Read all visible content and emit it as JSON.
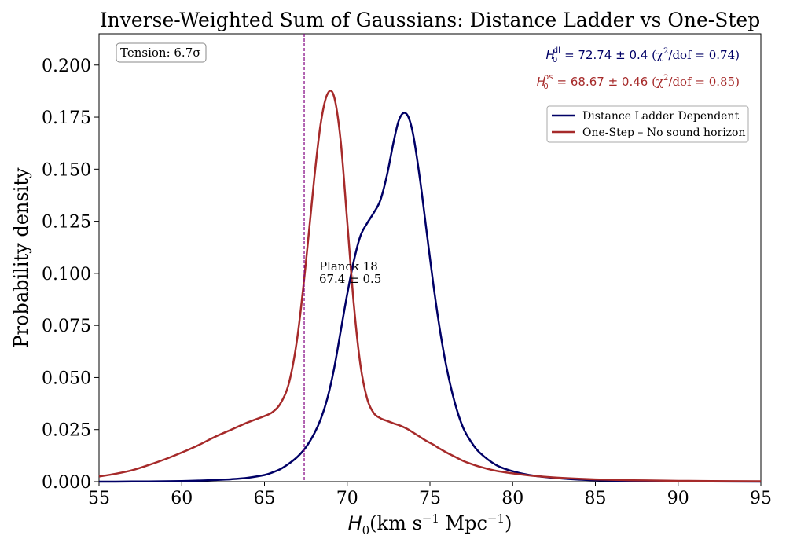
{
  "chart_data": {
    "type": "line",
    "title": "Inverse-Weighted Sum of Gaussians: Distance Ladder vs One-Step",
    "xlabel_symbol": "H",
    "xlabel_sub": "0",
    "xlabel_units": "(km s",
    "xlabel_exp1": "−1",
    "xlabel_mid": " Mpc",
    "xlabel_exp2": "−1",
    "xlabel_close": ")",
    "ylabel": "Probability density",
    "xlim": [
      55,
      95
    ],
    "ylim": [
      0,
      0.215
    ],
    "xticks": [
      "55",
      "60",
      "65",
      "70",
      "75",
      "80",
      "85",
      "90",
      "95"
    ],
    "xtick_values": [
      55,
      60,
      65,
      70,
      75,
      80,
      85,
      90,
      95
    ],
    "yticks": [
      "0.000",
      "0.025",
      "0.050",
      "0.075",
      "0.100",
      "0.125",
      "0.150",
      "0.175",
      "0.200"
    ],
    "ytick_values": [
      0,
      0.025,
      0.05,
      0.075,
      0.1,
      0.125,
      0.15,
      0.175,
      0.2
    ],
    "x": [
      55,
      56,
      57,
      58,
      59,
      60,
      61,
      62,
      63,
      64,
      65,
      65.5,
      66,
      66.5,
      67,
      67.5,
      68,
      68.4,
      68.8,
      69.2,
      69.6,
      70,
      70.4,
      70.8,
      71.2,
      71.6,
      72,
      72.4,
      72.8,
      73.1,
      73.4,
      73.7,
      74,
      74.4,
      74.8,
      75.2,
      75.6,
      76,
      76.5,
      77,
      77.5,
      78,
      79,
      80,
      81,
      82,
      83,
      84,
      85,
      86,
      87,
      88,
      90,
      92,
      95
    ],
    "series": [
      {
        "name": "Distance Ladder Dependent",
        "color": "#000066",
        "values": [
          0.0,
          0.0,
          0.0001,
          0.0001,
          0.0002,
          0.0003,
          0.0005,
          0.0008,
          0.0012,
          0.0019,
          0.0032,
          0.0045,
          0.0062,
          0.0088,
          0.012,
          0.0165,
          0.023,
          0.03,
          0.04,
          0.054,
          0.072,
          0.09,
          0.106,
          0.118,
          0.124,
          0.129,
          0.135,
          0.147,
          0.163,
          0.173,
          0.177,
          0.175,
          0.166,
          0.145,
          0.12,
          0.095,
          0.073,
          0.055,
          0.038,
          0.026,
          0.019,
          0.014,
          0.008,
          0.005,
          0.0032,
          0.0022,
          0.0015,
          0.001,
          0.0007,
          0.0005,
          0.0004,
          0.0003,
          0.0001,
          0.0001,
          0.0
        ]
      },
      {
        "name": "One-Step – No sound horizon",
        "color": "#a62a2a",
        "values": [
          0.0025,
          0.0038,
          0.0055,
          0.008,
          0.0108,
          0.014,
          0.0175,
          0.0215,
          0.025,
          0.0285,
          0.0315,
          0.0335,
          0.038,
          0.048,
          0.07,
          0.105,
          0.145,
          0.172,
          0.186,
          0.185,
          0.164,
          0.125,
          0.085,
          0.056,
          0.04,
          0.033,
          0.0305,
          0.0292,
          0.028,
          0.0272,
          0.0262,
          0.025,
          0.0235,
          0.0215,
          0.0195,
          0.0178,
          0.0158,
          0.014,
          0.012,
          0.01,
          0.0085,
          0.0072,
          0.0052,
          0.004,
          0.003,
          0.0023,
          0.0018,
          0.0014,
          0.0011,
          0.0009,
          0.0007,
          0.0006,
          0.0004,
          0.0003,
          0.0002
        ]
      }
    ],
    "vline": {
      "x": 67.4,
      "color": "#800080",
      "label_line1": "Planck 18",
      "label_line2": "67.4 ± 0.5",
      "label_x": 68.3,
      "label_y": 0.1
    },
    "tension_label": "Tension: 6.7σ",
    "annotations": {
      "dl": {
        "symbol": "H",
        "sub": "0",
        "sup": "dl",
        "value": " = 72.74 ± 0.4",
        "chi": " (χ",
        "chi_sup": "2",
        "dof": "/dof = 0.74)",
        "color": "#000066"
      },
      "os": {
        "symbol": "H",
        "sub": "0",
        "sup": "os",
        "value": " = 68.67 ± 0.46",
        "chi": " (χ",
        "chi_sup": "2",
        "dof": "/dof = 0.85)",
        "color": "#a62a2a"
      }
    },
    "legend": {
      "placement": "top-right",
      "entries": [
        "Distance Ladder Dependent",
        "One-Step – No sound horizon"
      ]
    },
    "grid": false
  }
}
